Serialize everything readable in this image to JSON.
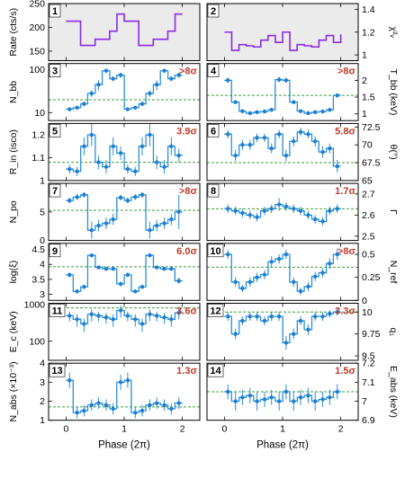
{
  "x_axis": {
    "label": "Phase (2π)",
    "ticks": [
      "0",
      "1",
      "2"
    ]
  },
  "colors": {
    "step": "#2a8fd6",
    "point": "#1e7fcf",
    "rate": "#8a2be2",
    "chi": "#8a2be2",
    "fit": "#3c9e3c",
    "sig": "#c0392b",
    "bg_panel": "#ebebeb"
  },
  "chart_data": [
    {
      "type": "line",
      "panel": "1",
      "ylabel": "Rate (cts/s)",
      "ylim": [
        130,
        250
      ],
      "yticks": [
        "150",
        "200",
        "250"
      ],
      "shade": true,
      "x": [
        0,
        0.25,
        0.5,
        0.75,
        0.875,
        1.0,
        1.25,
        1.5,
        1.75,
        1.875,
        2.0
      ],
      "values": [
        213,
        162,
        175,
        192,
        228,
        213,
        162,
        175,
        192,
        228,
        228
      ]
    },
    {
      "type": "line",
      "panel": "2",
      "ylabel": "χ²ᵥ",
      "ylim": [
        0.95,
        1.45
      ],
      "yticks": [
        "1",
        "1.2",
        "1.4"
      ],
      "shade": true,
      "x": [
        0,
        0.125,
        0.25,
        0.375,
        0.5,
        0.625,
        0.75,
        0.875,
        1.0,
        1.125,
        1.25,
        1.375,
        1.5,
        1.625,
        1.75,
        1.875,
        2.0
      ],
      "values": [
        1.2,
        1.04,
        1.09,
        1.08,
        1.07,
        1.13,
        1.17,
        1.11,
        1.2,
        1.04,
        1.09,
        1.08,
        1.07,
        1.13,
        1.17,
        1.11,
        1.18
      ]
    },
    {
      "type": "scatter",
      "panel": "3",
      "ylabel": "N_bb",
      "ylim": [
        6.5,
        140
      ],
      "log": true,
      "yticks": [
        "10",
        "100"
      ],
      "ytick_vals": [
        10,
        100
      ],
      "sig": ">8σ",
      "fit": 20,
      "x": [
        0.06,
        0.19,
        0.31,
        0.44,
        0.56,
        0.69,
        0.81,
        0.94,
        1.06,
        1.19,
        1.31,
        1.44,
        1.56,
        1.69,
        1.81,
        1.94
      ],
      "values": [
        12,
        13,
        16,
        28,
        45,
        95,
        62,
        75,
        12,
        13,
        16,
        28,
        45,
        95,
        62,
        75
      ],
      "err": [
        1,
        1,
        2,
        5,
        12,
        10,
        8,
        10,
        1,
        1,
        2,
        5,
        12,
        10,
        8,
        10
      ]
    },
    {
      "type": "scatter",
      "panel": "4",
      "ylabel": "T_bb (keV)",
      "ylim": [
        0.8,
        2.5
      ],
      "yticks": [
        "1",
        "1.5",
        "2"
      ],
      "sig": ">8σ",
      "fit": 1.55,
      "x": [
        0.06,
        0.19,
        0.31,
        0.44,
        0.56,
        0.69,
        0.81,
        0.94,
        1.06,
        1.19,
        1.31,
        1.44,
        1.56,
        1.69,
        1.81,
        1.94
      ],
      "values": [
        2.0,
        1.35,
        1.08,
        1.02,
        1.05,
        1.07,
        1.12,
        2.02,
        2.0,
        1.35,
        1.08,
        1.02,
        1.05,
        1.07,
        1.12,
        1.55
      ],
      "err": [
        0.08,
        0.06,
        0.04,
        0.04,
        0.04,
        0.04,
        0.05,
        0.08,
        0.08,
        0.06,
        0.04,
        0.04,
        0.04,
        0.04,
        0.05,
        0.06
      ]
    },
    {
      "type": "scatter",
      "panel": "5",
      "ylabel": "R_in (isco)",
      "ylim": [
        1.0,
        1.25
      ],
      "yticks": [
        "1",
        "1.1",
        "1.2"
      ],
      "sig": "3.9σ",
      "fit": 1.08,
      "x": [
        0.06,
        0.19,
        0.31,
        0.44,
        0.56,
        0.69,
        0.81,
        0.94,
        1.06,
        1.19,
        1.31,
        1.44,
        1.56,
        1.69,
        1.81,
        1.94
      ],
      "values": [
        1.05,
        1.04,
        1.15,
        1.2,
        1.08,
        1.06,
        1.15,
        1.12,
        1.05,
        1.04,
        1.15,
        1.2,
        1.08,
        1.06,
        1.15,
        1.11
      ],
      "err": [
        0.02,
        0.02,
        0.04,
        0.05,
        0.03,
        0.03,
        0.04,
        0.03,
        0.02,
        0.02,
        0.04,
        0.05,
        0.03,
        0.03,
        0.04,
        0.03
      ]
    },
    {
      "type": "scatter",
      "panel": "6",
      "ylabel": "θ(°)",
      "ylim": [
        65,
        73
      ],
      "yticks": [
        "65",
        "67.5",
        "70",
        "72.5"
      ],
      "sig": "5.8σ",
      "fit": 67.5,
      "x": [
        0.06,
        0.19,
        0.31,
        0.44,
        0.56,
        0.69,
        0.81,
        0.94,
        1.06,
        1.19,
        1.31,
        1.44,
        1.56,
        1.69,
        1.81,
        1.94
      ],
      "values": [
        71.5,
        68.5,
        70,
        70,
        71,
        71,
        69.5,
        71.5,
        68.5,
        70.5,
        71.8,
        71.5,
        70.5,
        69,
        69.5,
        67
      ],
      "err": [
        0.6,
        0.8,
        0.7,
        0.7,
        0.6,
        0.6,
        0.7,
        0.6,
        0.8,
        0.7,
        0.6,
        0.6,
        0.7,
        0.8,
        0.7,
        0.9
      ]
    },
    {
      "type": "scatter",
      "panel": "7",
      "ylabel": "N_po",
      "ylim": [
        0,
        10
      ],
      "yticks": [
        "0",
        "5"
      ],
      "ytick_vals": [
        0,
        5
      ],
      "sig": ">8σ",
      "fit": 5.3,
      "x": [
        0.06,
        0.19,
        0.31,
        0.44,
        0.56,
        0.69,
        0.81,
        0.94,
        1.06,
        1.19,
        1.31,
        1.44,
        1.56,
        1.69,
        1.81,
        1.94
      ],
      "values": [
        7,
        7.6,
        8,
        1.8,
        2.6,
        3,
        3.7,
        7.5,
        7,
        7.6,
        8,
        1.8,
        2.6,
        3,
        3.7,
        5
      ],
      "err": [
        0.5,
        0.5,
        0.5,
        1.5,
        1,
        1,
        1,
        0.5,
        0.5,
        0.5,
        0.5,
        1.5,
        1,
        1,
        1,
        3
      ]
    },
    {
      "type": "scatter",
      "panel": "8",
      "ylabel": "Γ",
      "ylim": [
        2.48,
        2.75
      ],
      "yticks": [
        "2.5",
        "2.6",
        "2.7"
      ],
      "sig": "1.7σ",
      "fit": 2.63,
      "x": [
        0.06,
        0.19,
        0.31,
        0.44,
        0.56,
        0.69,
        0.81,
        0.94,
        1.06,
        1.19,
        1.31,
        1.44,
        1.56,
        1.69,
        1.81,
        1.94
      ],
      "values": [
        2.63,
        2.62,
        2.61,
        2.6,
        2.59,
        2.62,
        2.63,
        2.65,
        2.64,
        2.63,
        2.62,
        2.6,
        2.58,
        2.57,
        2.62,
        2.63
      ],
      "err": [
        0.02,
        0.02,
        0.02,
        0.02,
        0.02,
        0.02,
        0.02,
        0.03,
        0.02,
        0.02,
        0.02,
        0.02,
        0.02,
        0.02,
        0.02,
        0.02
      ]
    },
    {
      "type": "scatter",
      "panel": "9",
      "ylabel": "log(ξ)",
      "ylim": [
        2.8,
        4.7
      ],
      "yticks": [
        "3",
        "3.5",
        "4",
        "4.5"
      ],
      "sig": "6.0σ",
      "fit": 3.92,
      "x": [
        0.06,
        0.19,
        0.31,
        0.44,
        0.56,
        0.69,
        0.81,
        0.94,
        1.06,
        1.19,
        1.31,
        1.44,
        1.56,
        1.69,
        1.81,
        1.94
      ],
      "values": [
        3.65,
        3.1,
        3.25,
        4.3,
        3.9,
        3.85,
        3.85,
        3.35,
        3.65,
        3.1,
        3.25,
        4.3,
        3.9,
        3.85,
        3.85,
        3.45
      ],
      "err": [
        0.08,
        0.06,
        0.06,
        0.05,
        0.06,
        0.06,
        0.06,
        0.08,
        0.08,
        0.06,
        0.06,
        0.05,
        0.06,
        0.06,
        0.06,
        0.1
      ]
    },
    {
      "type": "scatter",
      "panel": "10",
      "ylabel": "N_ref",
      "ylim": [
        0,
        0.62
      ],
      "yticks": [
        "0",
        "0.25",
        "0.5"
      ],
      "sig": ">8σ",
      "fit": 0.36,
      "x": [
        0.06,
        0.19,
        0.31,
        0.44,
        0.56,
        0.69,
        0.81,
        0.94,
        1.06,
        1.19,
        1.31,
        1.44,
        1.56,
        1.69,
        1.81,
        1.94
      ],
      "values": [
        0.5,
        0.2,
        0.13,
        0.2,
        0.25,
        0.28,
        0.42,
        0.45,
        0.5,
        0.2,
        0.1,
        0.15,
        0.26,
        0.3,
        0.4,
        0.5
      ],
      "err": [
        0.05,
        0.05,
        0.04,
        0.05,
        0.05,
        0.05,
        0.06,
        0.05,
        0.05,
        0.05,
        0.04,
        0.05,
        0.05,
        0.05,
        0.06,
        0.06
      ]
    },
    {
      "type": "scatter",
      "panel": "11",
      "ylabel": "E_c (keV)",
      "ylim": [
        30,
        1100
      ],
      "log": true,
      "yticks": [
        "100",
        "1000"
      ],
      "ytick_vals": [
        100,
        1000
      ],
      "sig": "3.6σ",
      "fit": 820,
      "x": [
        0.06,
        0.19,
        0.31,
        0.44,
        0.56,
        0.69,
        0.81,
        0.94,
        1.06,
        1.19,
        1.31,
        1.44,
        1.56,
        1.69,
        1.81,
        1.94
      ],
      "values": [
        500,
        400,
        300,
        550,
        500,
        450,
        400,
        700,
        500,
        400,
        300,
        550,
        500,
        450,
        400,
        600
      ],
      "err": [
        150,
        150,
        120,
        200,
        150,
        150,
        150,
        250,
        150,
        150,
        120,
        200,
        150,
        150,
        150,
        200
      ]
    },
    {
      "type": "scatter",
      "panel": "12",
      "ylabel": "q₁",
      "ylim": [
        9.45,
        10.1
      ],
      "yticks": [
        "9.5",
        "9.75",
        "10"
      ],
      "sig": "3.3σ",
      "fit": 10.0,
      "x": [
        0.06,
        0.19,
        0.31,
        0.44,
        0.56,
        0.69,
        0.81,
        0.94,
        1.06,
        1.19,
        1.31,
        1.44,
        1.56,
        1.69,
        1.81,
        1.94
      ],
      "values": [
        9.95,
        9.75,
        9.9,
        9.95,
        9.95,
        9.9,
        9.95,
        9.95,
        9.65,
        9.75,
        9.9,
        9.8,
        9.95,
        9.95,
        9.98,
        10.0
      ],
      "err": [
        0.05,
        0.06,
        0.05,
        0.05,
        0.05,
        0.05,
        0.05,
        0.05,
        0.08,
        0.06,
        0.05,
        0.06,
        0.05,
        0.05,
        0.04,
        0.04
      ]
    },
    {
      "type": "scatter",
      "panel": "13",
      "ylabel": "N_abs (×10⁻³)",
      "ylim": [
        1,
        4
      ],
      "yticks": [
        "1",
        "2",
        "3",
        "4"
      ],
      "sig": "1.3σ",
      "fit": 1.7,
      "x": [
        0.06,
        0.19,
        0.31,
        0.44,
        0.56,
        0.69,
        0.81,
        0.94,
        1.06,
        1.19,
        1.31,
        1.44,
        1.56,
        1.69,
        1.81,
        1.94
      ],
      "values": [
        3.1,
        1.4,
        1.5,
        1.8,
        1.9,
        1.8,
        1.6,
        3.0,
        3.1,
        1.4,
        1.5,
        1.8,
        1.9,
        1.8,
        1.6,
        1.9
      ],
      "err": [
        0.4,
        0.3,
        0.3,
        0.3,
        0.3,
        0.3,
        0.3,
        0.4,
        0.4,
        0.3,
        0.3,
        0.3,
        0.3,
        0.3,
        0.3,
        0.3
      ]
    },
    {
      "type": "scatter",
      "panel": "14",
      "ylabel": "E_abs (keV)",
      "ylim": [
        6.9,
        7.2
      ],
      "yticks": [
        "6.9",
        "7",
        "7.1",
        "7.2"
      ],
      "sig": "1.5σ",
      "fit": 7.05,
      "x": [
        0.06,
        0.19,
        0.31,
        0.44,
        0.56,
        0.69,
        0.81,
        0.94,
        1.06,
        1.19,
        1.31,
        1.44,
        1.56,
        1.69,
        1.81,
        1.94
      ],
      "values": [
        7.05,
        7.0,
        7.02,
        7.03,
        7.0,
        7.01,
        7.02,
        7.0,
        7.05,
        7.0,
        7.02,
        7.03,
        7.0,
        7.01,
        7.02,
        7.05
      ],
      "err": [
        0.04,
        0.05,
        0.04,
        0.04,
        0.05,
        0.04,
        0.04,
        0.05,
        0.04,
        0.05,
        0.04,
        0.04,
        0.05,
        0.04,
        0.04,
        0.04
      ]
    }
  ]
}
